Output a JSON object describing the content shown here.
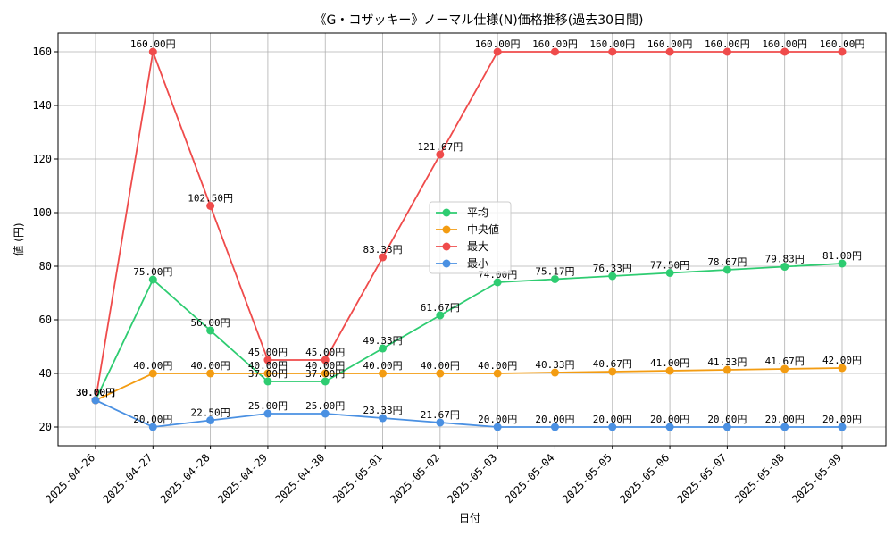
{
  "chart_data": {
    "type": "line",
    "title": "《G・コザッキー》ノーマル仕様(N)価格推移(過去30日間)",
    "xlabel": "日付",
    "ylabel": "値 (円)",
    "categories": [
      "2025-04-26",
      "2025-04-27",
      "2025-04-28",
      "2025-04-29",
      "2025-04-30",
      "2025-05-01",
      "2025-05-02",
      "2025-05-03",
      "2025-05-04",
      "2025-05-05",
      "2025-05-06",
      "2025-05-07",
      "2025-05-08",
      "2025-05-09"
    ],
    "ylim": [
      13,
      167
    ],
    "yticks": [
      20,
      40,
      60,
      80,
      100,
      120,
      140,
      160
    ],
    "grid": true,
    "legend_position": "center",
    "unit_suffix": "円",
    "series": [
      {
        "name": "平均",
        "color": "#2ecc71",
        "values": [
          30.0,
          75.0,
          56.0,
          37.0,
          37.0,
          49.33,
          61.67,
          74.0,
          75.17,
          76.33,
          77.5,
          78.67,
          79.83,
          81.0
        ]
      },
      {
        "name": "中央値",
        "color": "#f39c12",
        "values": [
          30.0,
          40.0,
          40.0,
          40.0,
          40.0,
          40.0,
          40.0,
          40.0,
          40.33,
          40.67,
          41.0,
          41.33,
          41.67,
          42.0
        ]
      },
      {
        "name": "最大",
        "color": "#ef4b4b",
        "values": [
          30.0,
          160.0,
          102.5,
          45.0,
          45.0,
          83.33,
          121.67,
          160.0,
          160.0,
          160.0,
          160.0,
          160.0,
          160.0,
          160.0
        ]
      },
      {
        "name": "最小",
        "color": "#4a90e2",
        "values": [
          30.0,
          20.0,
          22.5,
          25.0,
          25.0,
          23.33,
          21.67,
          20.0,
          20.0,
          20.0,
          20.0,
          20.0,
          20.0,
          20.0
        ]
      }
    ]
  }
}
